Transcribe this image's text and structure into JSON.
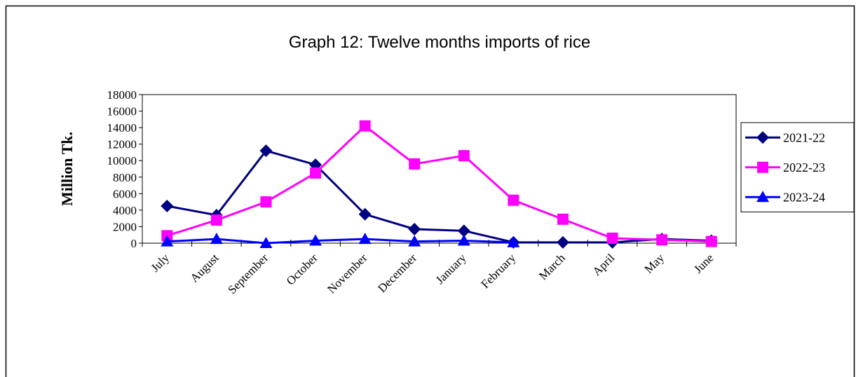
{
  "chart_data": {
    "type": "line",
    "title": "Graph 12: Twelve months imports of rice",
    "y_label": "Million Tk.",
    "categories": [
      "July",
      "August",
      "September",
      "October",
      "November",
      "December",
      "January",
      "February",
      "March",
      "April",
      "May",
      "June"
    ],
    "series": [
      {
        "name": "2021-22",
        "color": "#000080",
        "marker": "diamond",
        "values": [
          4500,
          3400,
          11200,
          9500,
          3500,
          1700,
          1500,
          100,
          100,
          100,
          500,
          300
        ]
      },
      {
        "name": "2022-23",
        "color": "#ff00ff",
        "marker": "square",
        "values": [
          900,
          2800,
          5000,
          8500,
          14200,
          9600,
          10600,
          5200,
          2900,
          600,
          400,
          200
        ]
      },
      {
        "name": "2023-24",
        "color": "#0000ff",
        "marker": "triangle",
        "values": [
          200,
          500,
          0,
          300,
          500,
          200,
          300,
          100,
          null,
          null,
          null,
          null
        ]
      }
    ],
    "ylim": [
      0,
      18000
    ],
    "yticks": [
      0,
      2000,
      4000,
      6000,
      8000,
      10000,
      12000,
      14000,
      16000,
      18000
    ],
    "grid": false,
    "legend": "right"
  }
}
